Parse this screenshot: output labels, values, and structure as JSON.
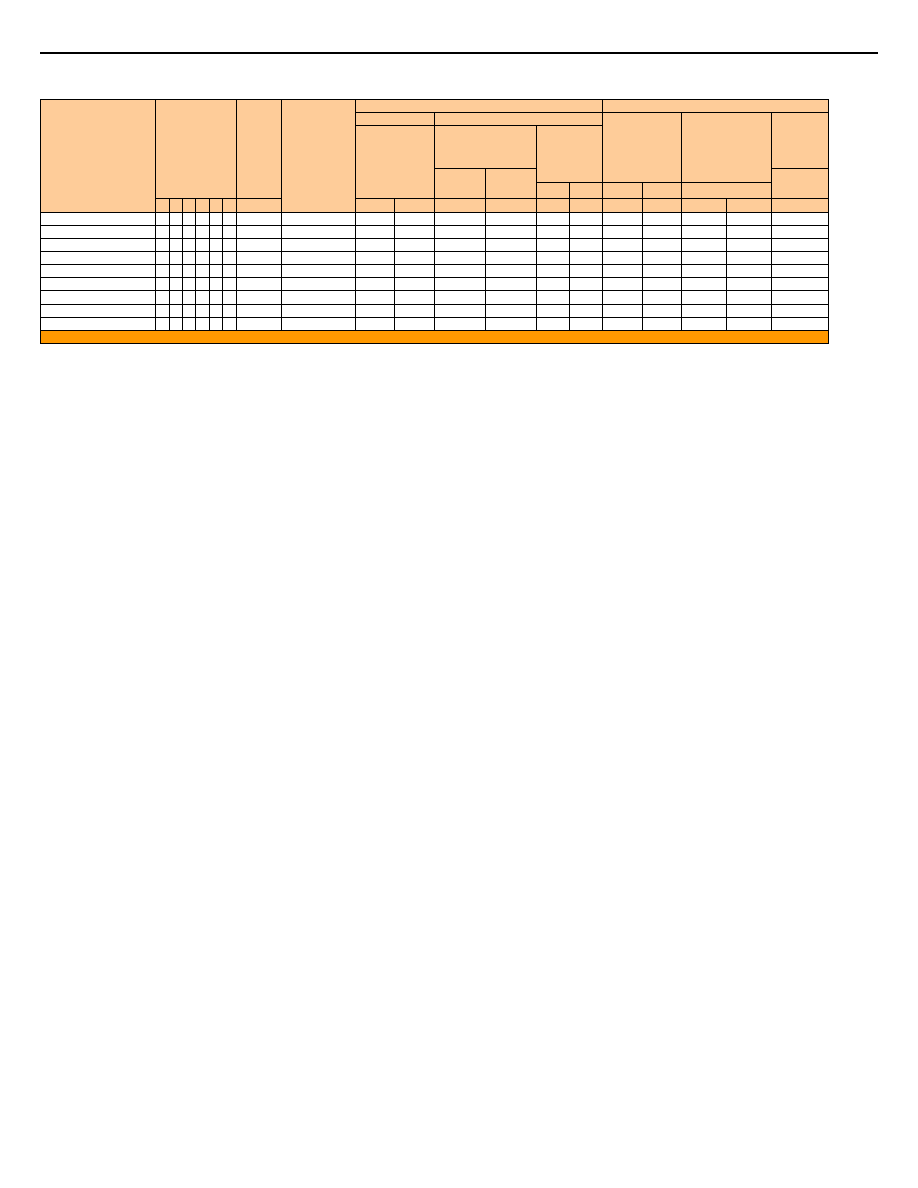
{
  "colors": {
    "header_fill": "#fecc99",
    "footer_fill": "#ff9900",
    "body_fill": "#ffffff",
    "border": "#000000"
  }
}
